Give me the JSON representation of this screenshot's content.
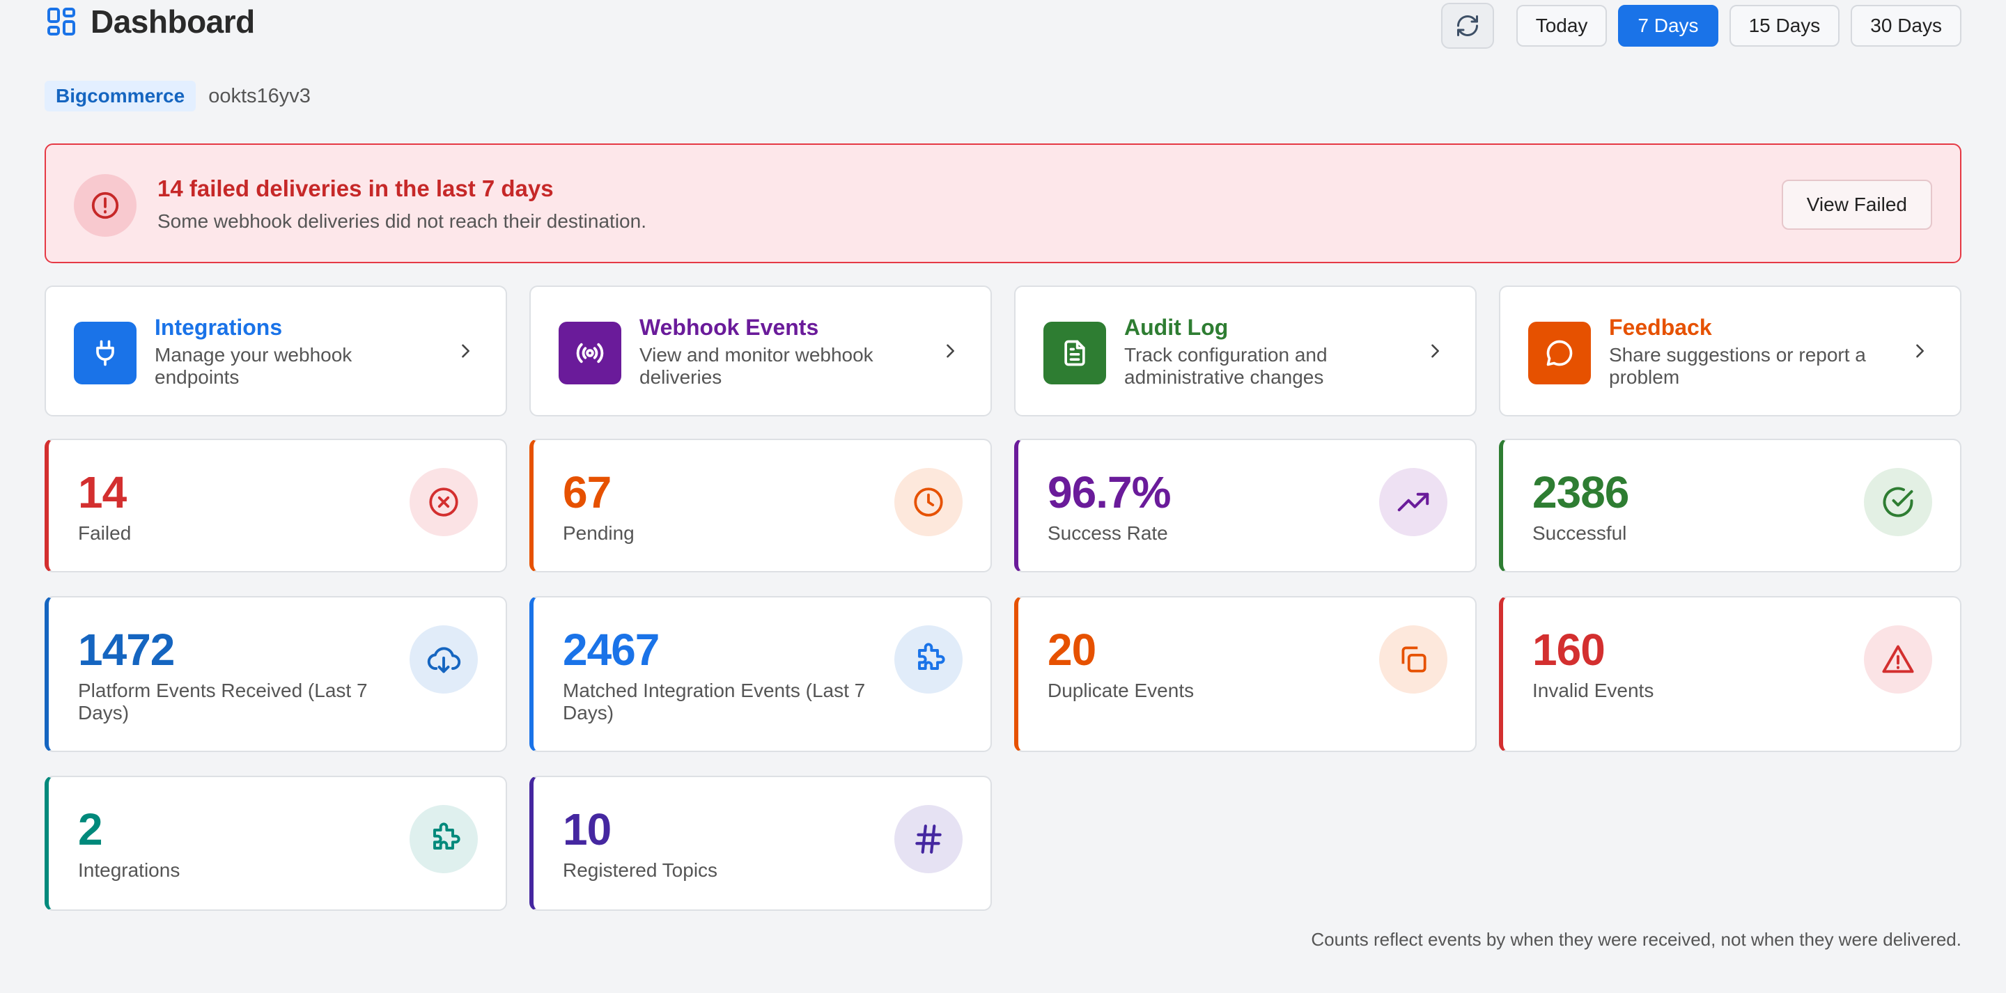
{
  "header": {
    "title": "Dashboard",
    "ranges": [
      "Today",
      "7 Days",
      "15 Days",
      "30 Days"
    ],
    "active_range": "7 Days"
  },
  "platform": {
    "name": "Bigcommerce",
    "id": "ookts16yv3"
  },
  "alert": {
    "title": "14 failed deliveries in the last 7 days",
    "subtitle": "Some webhook deliveries did not reach their destination.",
    "button": "View Failed"
  },
  "nav_cards": [
    {
      "title": "Integrations",
      "description": "Manage your webhook endpoints",
      "color": "#1a73e8"
    },
    {
      "title": "Webhook Events",
      "description": "View and monitor webhook deliveries",
      "color": "#6a1b9a"
    },
    {
      "title": "Audit Log",
      "description": "Track configuration and administrative changes",
      "color": "#2e7d32"
    },
    {
      "title": "Feedback",
      "description": "Share suggestions or report a problem",
      "color": "#e65100"
    }
  ],
  "stats": [
    {
      "value": "14",
      "label": "Failed",
      "color": "#d32f2f",
      "icon": "x-circle-icon"
    },
    {
      "value": "67",
      "label": "Pending",
      "color": "#e65100",
      "icon": "clock-icon"
    },
    {
      "value": "96.7%",
      "label": "Success Rate",
      "color": "#6a1b9a",
      "icon": "trending-up-icon"
    },
    {
      "value": "2386",
      "label": "Successful",
      "color": "#2e7d32",
      "icon": "check-circle-icon"
    },
    {
      "value": "1472",
      "label": "Platform Events Received (Last 7 Days)",
      "color": "#1565c0",
      "icon": "cloud-download-icon"
    },
    {
      "value": "2467",
      "label": "Matched Integration Events (Last 7 Days)",
      "color": "#1a73e8",
      "icon": "puzzle-icon"
    },
    {
      "value": "20",
      "label": "Duplicate Events",
      "color": "#e65100",
      "icon": "copy-icon"
    },
    {
      "value": "160",
      "label": "Invalid Events",
      "color": "#d32f2f",
      "icon": "alert-triangle-icon"
    },
    {
      "value": "2",
      "label": "Integrations",
      "color": "#00897b",
      "icon": "puzzle-icon"
    },
    {
      "value": "10",
      "label": "Registered Topics",
      "color": "#4527a0",
      "icon": "hash-icon"
    }
  ],
  "footer_note": "Counts reflect events by when they were received, not when they were delivered."
}
